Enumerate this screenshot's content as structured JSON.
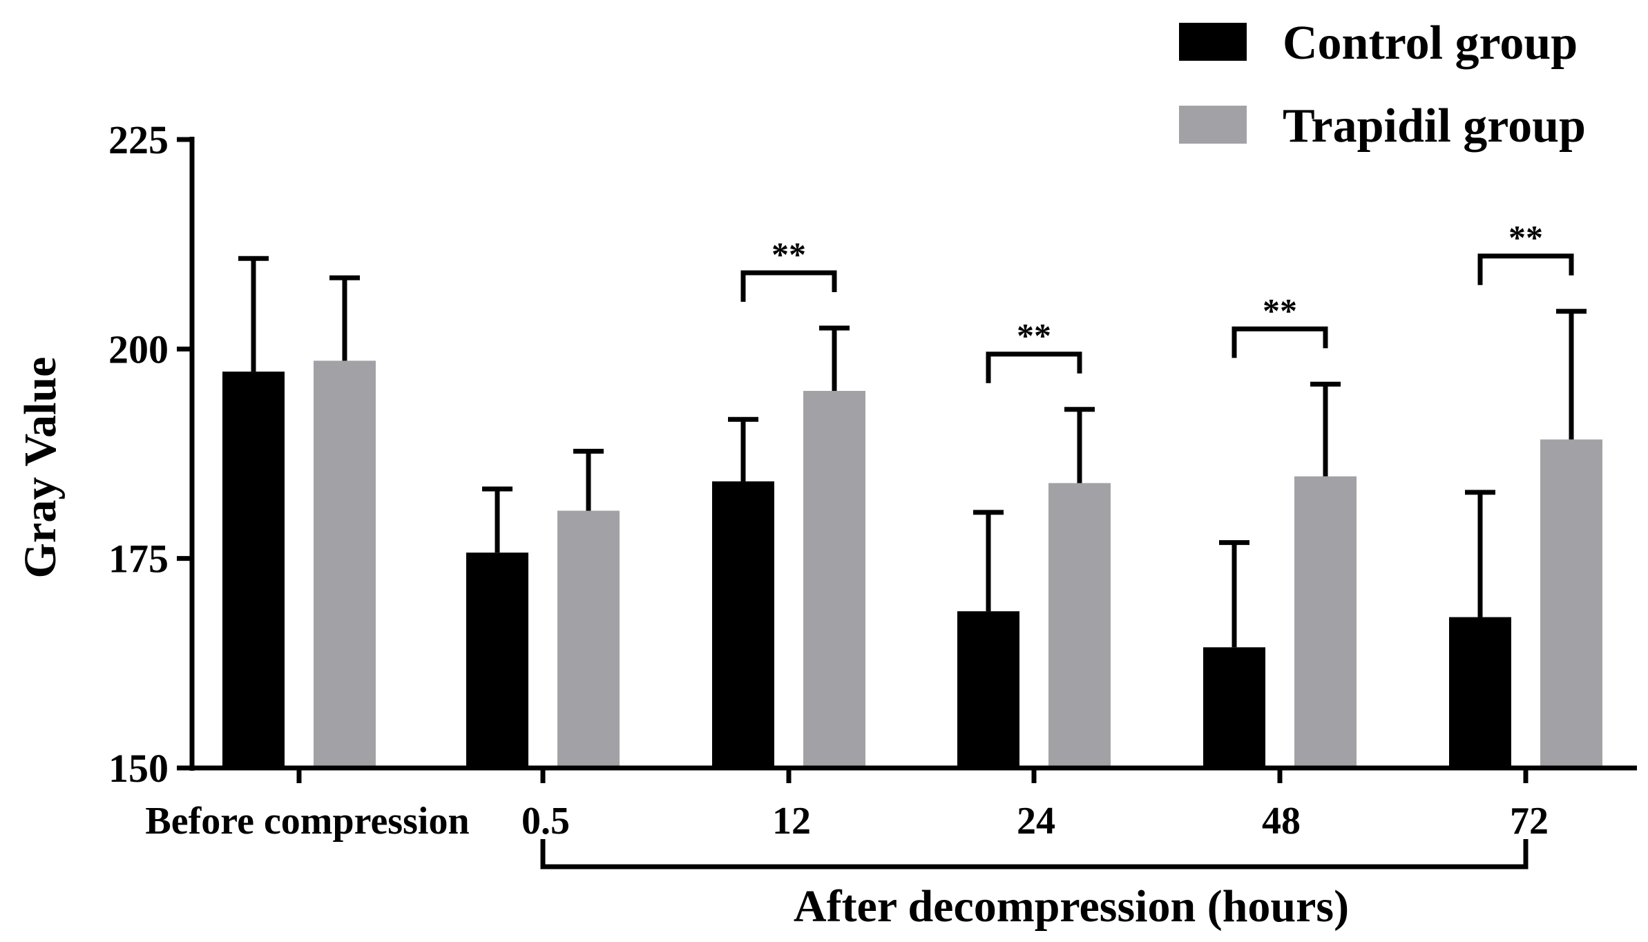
{
  "chart_data": {
    "type": "bar",
    "ylabel": "Gray Value",
    "ylim": [
      150,
      225
    ],
    "yticks": [
      "150",
      "175",
      "200",
      "225"
    ],
    "categories": [
      "Before compression",
      "0.5",
      "12",
      "24",
      "48",
      "72"
    ],
    "group_label": "After decompression (hours)",
    "series": [
      {
        "name": "Control group",
        "color": "#000000",
        "values": [
          197.3,
          175.7,
          184.2,
          168.7,
          164.4,
          168.0
        ],
        "errors": [
          13.5,
          7.6,
          7.4,
          11.8,
          12.5,
          14.9
        ]
      },
      {
        "name": "Trapidil group",
        "color": "#a2a2a6",
        "values": [
          198.6,
          180.7,
          195.0,
          184.0,
          184.8,
          189.2
        ],
        "errors": [
          9.9,
          7.1,
          7.5,
          8.8,
          11.0,
          15.3
        ]
      }
    ],
    "significance": [
      {
        "category": "12",
        "label": "**"
      },
      {
        "category": "24",
        "label": "**"
      },
      {
        "category": "48",
        "label": "**"
      },
      {
        "category": "72",
        "label": "**"
      }
    ],
    "legend_position": "top-right"
  }
}
